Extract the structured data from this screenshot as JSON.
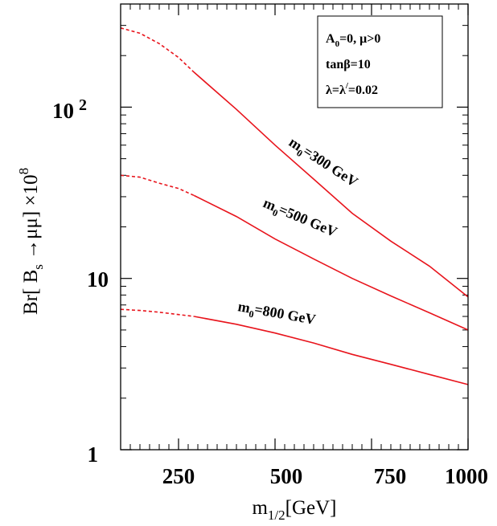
{
  "chart_data": {
    "type": "line",
    "x_scale": "linear",
    "y_scale": "log",
    "xlim": [
      100,
      1000
    ],
    "ylim": [
      1,
      400
    ],
    "x_ticks": [
      {
        "value": 250,
        "label": "250"
      },
      {
        "value": 500,
        "label": "500"
      },
      {
        "value": 750,
        "label": "750"
      },
      {
        "value": 1000,
        "label": "1000"
      }
    ],
    "y_ticks": [
      {
        "value": 1,
        "label": "1"
      },
      {
        "value": 10,
        "label": "10"
      },
      {
        "value": 100,
        "label_base": "10",
        "label_exp": "2"
      }
    ],
    "xlabel": {
      "main": "m",
      "sub": "1/2",
      "rest": "[GeV]"
    },
    "ylabel": {
      "pre": "Br[ B",
      "sub": "s",
      "post": " →μμ] ×10",
      "sup": "8"
    },
    "line_color": "#e8141c",
    "legend_box": {
      "line1": {
        "a": "A",
        "a_sub": "0",
        "rest": "=0,  μ>0"
      },
      "line2": "tanβ=10",
      "line3": {
        "pre": "λ=λ",
        "sup": "/",
        "post": "=0.02"
      }
    },
    "series": [
      {
        "label": {
          "pre": "m",
          "sub": "0",
          "post": "=300 GeV"
        },
        "dashed_until": 290,
        "points": [
          [
            100,
            290
          ],
          [
            150,
            270
          ],
          [
            200,
            235
          ],
          [
            250,
            195
          ],
          [
            290,
            160
          ],
          [
            400,
            97
          ],
          [
            500,
            60
          ],
          [
            600,
            38
          ],
          [
            700,
            24
          ],
          [
            800,
            16.5
          ],
          [
            900,
            11.8
          ],
          [
            1000,
            7.8
          ]
        ]
      },
      {
        "label": {
          "pre": "m",
          "sub": "0",
          "post": "=500 GeV"
        },
        "dashed_until": 290,
        "points": [
          [
            100,
            40
          ],
          [
            150,
            39
          ],
          [
            200,
            36
          ],
          [
            250,
            33.5
          ],
          [
            290,
            30.5
          ],
          [
            400,
            23
          ],
          [
            500,
            17
          ],
          [
            600,
            13
          ],
          [
            700,
            10
          ],
          [
            800,
            7.9
          ],
          [
            900,
            6.3
          ],
          [
            1000,
            5
          ]
        ]
      },
      {
        "label": {
          "pre": "m",
          "sub": "0",
          "post": "=800 GeV"
        },
        "dashed_until": 290,
        "points": [
          [
            100,
            6.6
          ],
          [
            150,
            6.5
          ],
          [
            200,
            6.35
          ],
          [
            250,
            6.15
          ],
          [
            290,
            6
          ],
          [
            400,
            5.4
          ],
          [
            500,
            4.8
          ],
          [
            600,
            4.2
          ],
          [
            700,
            3.6
          ],
          [
            800,
            3.15
          ],
          [
            900,
            2.75
          ],
          [
            1000,
            2.4
          ]
        ]
      }
    ]
  }
}
